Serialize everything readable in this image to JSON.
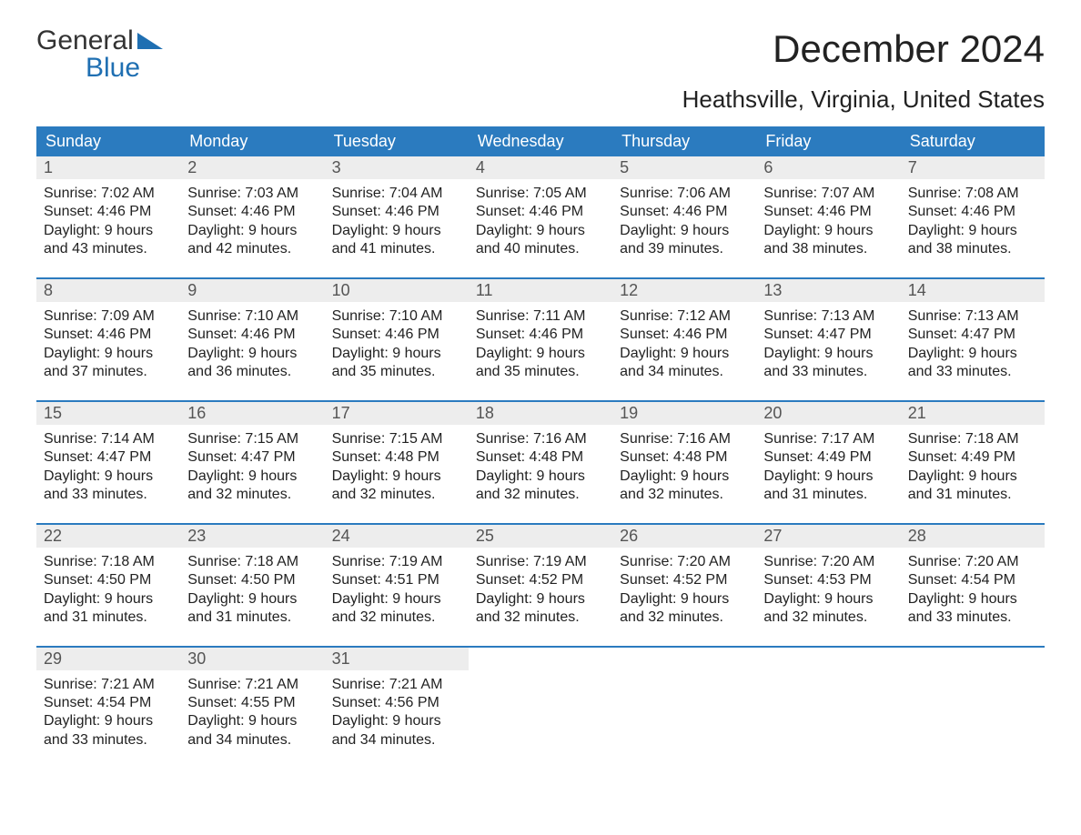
{
  "logo": {
    "word1": "General",
    "word2": "Blue",
    "flag_color": "#1f6fb2",
    "text_color": "#333333"
  },
  "title": "December 2024",
  "location": "Heathsville, Virginia, United States",
  "colors": {
    "header_bg": "#2b7bbf",
    "header_text": "#ffffff",
    "daynum_bg": "#ededed",
    "daynum_text": "#555555",
    "body_text": "#222222",
    "week_border": "#2b7bbf",
    "page_bg": "#ffffff"
  },
  "fonts": {
    "title_size_pt": 32,
    "location_size_pt": 20,
    "weekday_size_pt": 14,
    "body_size_pt": 12
  },
  "weekdays": [
    "Sunday",
    "Monday",
    "Tuesday",
    "Wednesday",
    "Thursday",
    "Friday",
    "Saturday"
  ],
  "labels": {
    "sunrise": "Sunrise:",
    "sunset": "Sunset:",
    "daylight": "Daylight:"
  },
  "weeks": [
    [
      {
        "n": "1",
        "sr": "7:02 AM",
        "ss": "4:46 PM",
        "dl1": "9 hours",
        "dl2": "and 43 minutes."
      },
      {
        "n": "2",
        "sr": "7:03 AM",
        "ss": "4:46 PM",
        "dl1": "9 hours",
        "dl2": "and 42 minutes."
      },
      {
        "n": "3",
        "sr": "7:04 AM",
        "ss": "4:46 PM",
        "dl1": "9 hours",
        "dl2": "and 41 minutes."
      },
      {
        "n": "4",
        "sr": "7:05 AM",
        "ss": "4:46 PM",
        "dl1": "9 hours",
        "dl2": "and 40 minutes."
      },
      {
        "n": "5",
        "sr": "7:06 AM",
        "ss": "4:46 PM",
        "dl1": "9 hours",
        "dl2": "and 39 minutes."
      },
      {
        "n": "6",
        "sr": "7:07 AM",
        "ss": "4:46 PM",
        "dl1": "9 hours",
        "dl2": "and 38 minutes."
      },
      {
        "n": "7",
        "sr": "7:08 AM",
        "ss": "4:46 PM",
        "dl1": "9 hours",
        "dl2": "and 38 minutes."
      }
    ],
    [
      {
        "n": "8",
        "sr": "7:09 AM",
        "ss": "4:46 PM",
        "dl1": "9 hours",
        "dl2": "and 37 minutes."
      },
      {
        "n": "9",
        "sr": "7:10 AM",
        "ss": "4:46 PM",
        "dl1": "9 hours",
        "dl2": "and 36 minutes."
      },
      {
        "n": "10",
        "sr": "7:10 AM",
        "ss": "4:46 PM",
        "dl1": "9 hours",
        "dl2": "and 35 minutes."
      },
      {
        "n": "11",
        "sr": "7:11 AM",
        "ss": "4:46 PM",
        "dl1": "9 hours",
        "dl2": "and 35 minutes."
      },
      {
        "n": "12",
        "sr": "7:12 AM",
        "ss": "4:46 PM",
        "dl1": "9 hours",
        "dl2": "and 34 minutes."
      },
      {
        "n": "13",
        "sr": "7:13 AM",
        "ss": "4:47 PM",
        "dl1": "9 hours",
        "dl2": "and 33 minutes."
      },
      {
        "n": "14",
        "sr": "7:13 AM",
        "ss": "4:47 PM",
        "dl1": "9 hours",
        "dl2": "and 33 minutes."
      }
    ],
    [
      {
        "n": "15",
        "sr": "7:14 AM",
        "ss": "4:47 PM",
        "dl1": "9 hours",
        "dl2": "and 33 minutes."
      },
      {
        "n": "16",
        "sr": "7:15 AM",
        "ss": "4:47 PM",
        "dl1": "9 hours",
        "dl2": "and 32 minutes."
      },
      {
        "n": "17",
        "sr": "7:15 AM",
        "ss": "4:48 PM",
        "dl1": "9 hours",
        "dl2": "and 32 minutes."
      },
      {
        "n": "18",
        "sr": "7:16 AM",
        "ss": "4:48 PM",
        "dl1": "9 hours",
        "dl2": "and 32 minutes."
      },
      {
        "n": "19",
        "sr": "7:16 AM",
        "ss": "4:48 PM",
        "dl1": "9 hours",
        "dl2": "and 32 minutes."
      },
      {
        "n": "20",
        "sr": "7:17 AM",
        "ss": "4:49 PM",
        "dl1": "9 hours",
        "dl2": "and 31 minutes."
      },
      {
        "n": "21",
        "sr": "7:18 AM",
        "ss": "4:49 PM",
        "dl1": "9 hours",
        "dl2": "and 31 minutes."
      }
    ],
    [
      {
        "n": "22",
        "sr": "7:18 AM",
        "ss": "4:50 PM",
        "dl1": "9 hours",
        "dl2": "and 31 minutes."
      },
      {
        "n": "23",
        "sr": "7:18 AM",
        "ss": "4:50 PM",
        "dl1": "9 hours",
        "dl2": "and 31 minutes."
      },
      {
        "n": "24",
        "sr": "7:19 AM",
        "ss": "4:51 PM",
        "dl1": "9 hours",
        "dl2": "and 32 minutes."
      },
      {
        "n": "25",
        "sr": "7:19 AM",
        "ss": "4:52 PM",
        "dl1": "9 hours",
        "dl2": "and 32 minutes."
      },
      {
        "n": "26",
        "sr": "7:20 AM",
        "ss": "4:52 PM",
        "dl1": "9 hours",
        "dl2": "and 32 minutes."
      },
      {
        "n": "27",
        "sr": "7:20 AM",
        "ss": "4:53 PM",
        "dl1": "9 hours",
        "dl2": "and 32 minutes."
      },
      {
        "n": "28",
        "sr": "7:20 AM",
        "ss": "4:54 PM",
        "dl1": "9 hours",
        "dl2": "and 33 minutes."
      }
    ],
    [
      {
        "n": "29",
        "sr": "7:21 AM",
        "ss": "4:54 PM",
        "dl1": "9 hours",
        "dl2": "and 33 minutes."
      },
      {
        "n": "30",
        "sr": "7:21 AM",
        "ss": "4:55 PM",
        "dl1": "9 hours",
        "dl2": "and 34 minutes."
      },
      {
        "n": "31",
        "sr": "7:21 AM",
        "ss": "4:56 PM",
        "dl1": "9 hours",
        "dl2": "and 34 minutes."
      },
      null,
      null,
      null,
      null
    ]
  ]
}
